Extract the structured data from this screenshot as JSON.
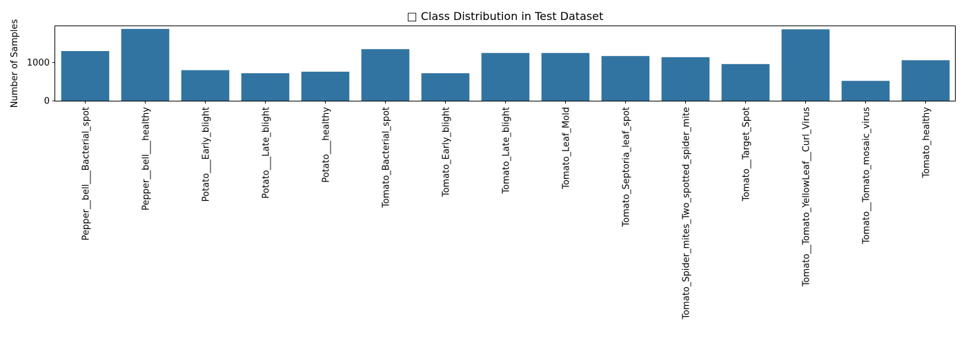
{
  "chart_data": {
    "type": "bar",
    "title": "□ Class Distribution in Test Dataset",
    "xlabel": "",
    "ylabel": "Number of Samples",
    "ylim": [
      0,
      1950
    ],
    "yticks": [
      0,
      1000
    ],
    "grid": false,
    "bar_color": "#3274a1",
    "categories": [
      "Pepper__bell___Bacterial_spot",
      "Pepper__bell___healthy",
      "Potato___Early_blight",
      "Potato___Late_blight",
      "Potato___healthy",
      "Tomato_Bacterial_spot",
      "Tomato_Early_blight",
      "Tomato_Late_blight",
      "Tomato_Leaf_Mold",
      "Tomato_Septoria_leaf_spot",
      "Tomato_Spider_mites_Two_spotted_spider_mite",
      "Tomato__Target_Spot",
      "Tomato__Tomato_YellowLeaf__Curl_Virus",
      "Tomato__Tomato_mosaic_virus",
      "Tomato_healthy"
    ],
    "values": [
      1300,
      1880,
      800,
      720,
      760,
      1350,
      720,
      1250,
      1250,
      1170,
      1140,
      960,
      1870,
      520,
      1060
    ]
  }
}
